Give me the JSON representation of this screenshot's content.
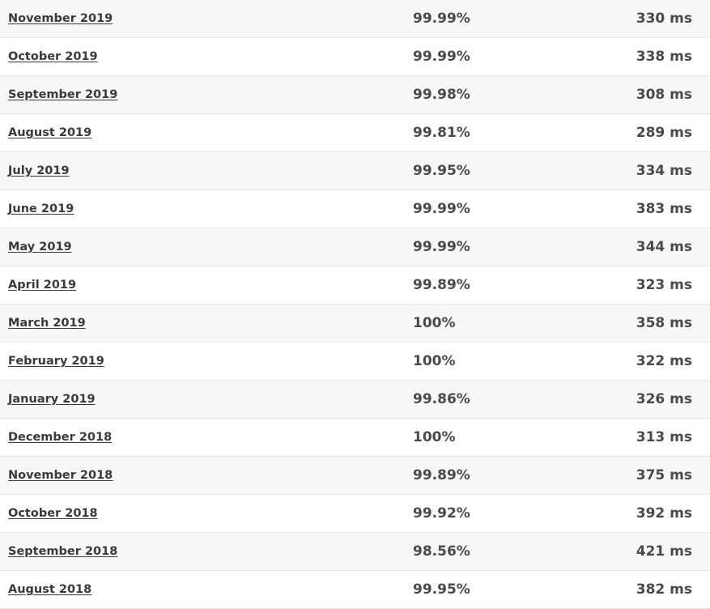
{
  "rows": [
    {
      "month": "November 2019",
      "uptime": "99.99%",
      "response": "330 ms"
    },
    {
      "month": "October 2019",
      "uptime": "99.99%",
      "response": "338 ms"
    },
    {
      "month": "September 2019",
      "uptime": "99.98%",
      "response": "308 ms"
    },
    {
      "month": "August 2019",
      "uptime": "99.81%",
      "response": "289 ms"
    },
    {
      "month": "July 2019",
      "uptime": "99.95%",
      "response": "334 ms"
    },
    {
      "month": "June 2019",
      "uptime": "99.99%",
      "response": "383 ms"
    },
    {
      "month": "May 2019",
      "uptime": "99.99%",
      "response": "344 ms"
    },
    {
      "month": "April 2019",
      "uptime": "99.89%",
      "response": "323 ms"
    },
    {
      "month": "March 2019",
      "uptime": "100%",
      "response": "358 ms"
    },
    {
      "month": "February 2019",
      "uptime": "100%",
      "response": "322 ms"
    },
    {
      "month": "January 2019",
      "uptime": "99.86%",
      "response": "326 ms"
    },
    {
      "month": "December 2018",
      "uptime": "100%",
      "response": "313 ms"
    },
    {
      "month": "November 2018",
      "uptime": "99.89%",
      "response": "375 ms"
    },
    {
      "month": "October 2018",
      "uptime": "99.92%",
      "response": "392 ms"
    },
    {
      "month": "September 2018",
      "uptime": "98.56%",
      "response": "421 ms"
    },
    {
      "month": "August 2018",
      "uptime": "99.95%",
      "response": "382 ms"
    }
  ]
}
